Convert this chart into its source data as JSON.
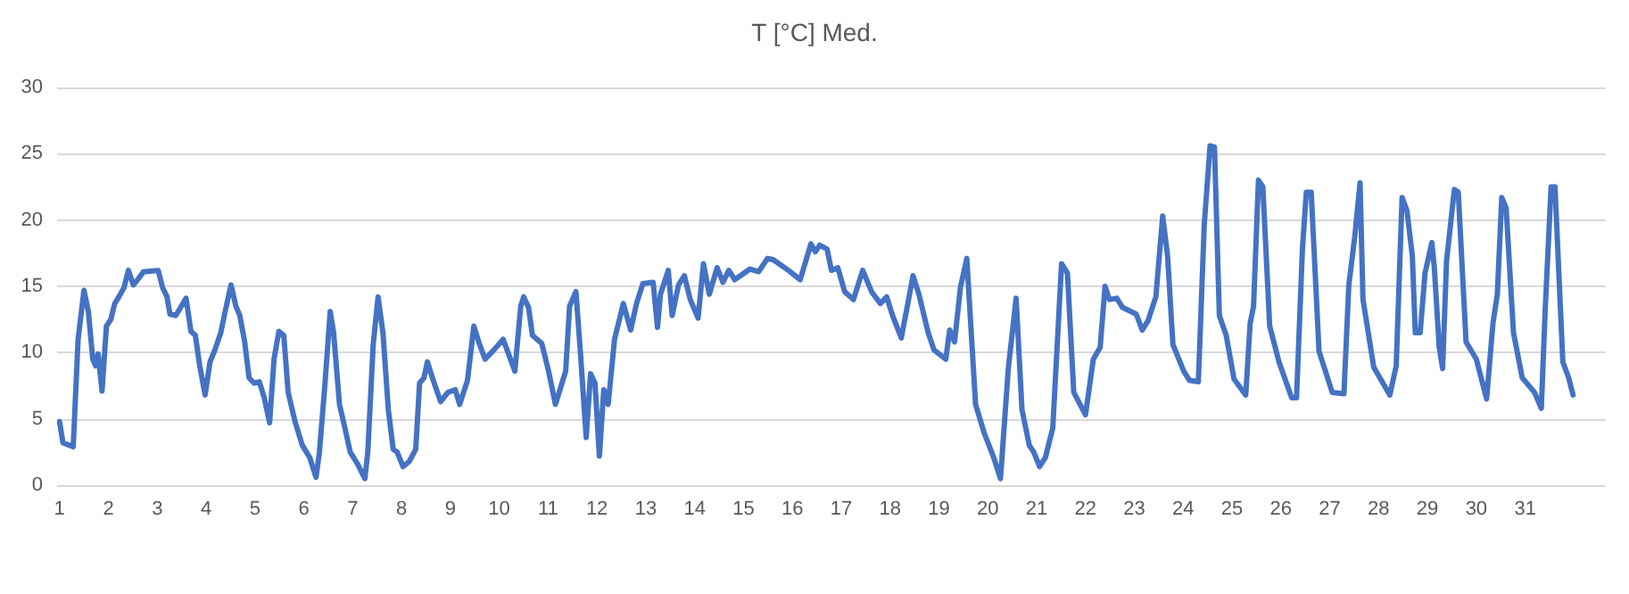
{
  "chart_data": {
    "type": "line",
    "title": "T [°C] Med.",
    "x": [
      1.0,
      1.07,
      1.28,
      1.38,
      1.5,
      1.59,
      1.68,
      1.74,
      1.79,
      1.87,
      1.96,
      2.05,
      2.13,
      2.23,
      2.32,
      2.41,
      2.51,
      2.6,
      2.72,
      3.02,
      3.11,
      3.2,
      3.26,
      3.38,
      3.59,
      3.69,
      3.78,
      3.87,
      3.98,
      4.08,
      4.18,
      4.3,
      4.39,
      4.51,
      4.61,
      4.69,
      4.79,
      4.88,
      4.98,
      5.09,
      5.19,
      5.3,
      5.39,
      5.49,
      5.59,
      5.68,
      5.82,
      5.97,
      6.12,
      6.25,
      6.32,
      6.43,
      6.54,
      6.61,
      6.73,
      6.83,
      6.95,
      7.1,
      7.25,
      7.31,
      7.42,
      7.52,
      7.62,
      7.73,
      7.83,
      7.91,
      8.03,
      8.16,
      8.29,
      8.37,
      8.46,
      8.53,
      8.65,
      8.8,
      8.95,
      9.1,
      9.19,
      9.35,
      9.48,
      9.59,
      9.71,
      9.89,
      10.08,
      10.32,
      10.44,
      10.5,
      10.6,
      10.68,
      10.87,
      11.01,
      11.15,
      11.36,
      11.44,
      11.57,
      11.66,
      11.78,
      11.87,
      11.96,
      12.05,
      12.14,
      12.23,
      12.36,
      12.54,
      12.69,
      12.81,
      12.94,
      13.15,
      13.24,
      13.3,
      13.46,
      13.54,
      13.67,
      13.79,
      13.91,
      14.07,
      14.18,
      14.3,
      14.46,
      14.58,
      14.7,
      14.82,
      15.13,
      15.31,
      15.49,
      15.61,
      15.92,
      16.16,
      16.38,
      16.47,
      16.56,
      16.71,
      16.8,
      16.93,
      17.07,
      17.25,
      17.44,
      17.62,
      17.8,
      17.93,
      18.05,
      18.23,
      18.47,
      18.59,
      18.78,
      18.9,
      19.14,
      19.22,
      19.32,
      19.44,
      19.57,
      19.75,
      19.93,
      20.12,
      20.26,
      20.42,
      20.58,
      20.7,
      20.85,
      20.94,
      21.06,
      21.18,
      21.33,
      21.51,
      21.63,
      21.76,
      22.0,
      22.16,
      22.3,
      22.4,
      22.49,
      22.64,
      22.76,
      23.04,
      23.16,
      23.28,
      23.44,
      23.58,
      23.68,
      23.79,
      24.01,
      24.13,
      24.31,
      24.43,
      24.55,
      24.64,
      24.74,
      24.88,
      25.04,
      25.28,
      25.37,
      25.44,
      25.54,
      25.63,
      25.77,
      25.96,
      26.22,
      26.32,
      26.44,
      26.52,
      26.62,
      26.78,
      27.05,
      27.29,
      27.39,
      27.51,
      27.62,
      27.68,
      27.9,
      28.23,
      28.36,
      28.48,
      28.58,
      28.69,
      28.75,
      28.85,
      28.95,
      29.09,
      29.14,
      29.24,
      29.31,
      29.39,
      29.55,
      29.63,
      29.79,
      30.0,
      30.21,
      30.34,
      30.43,
      30.52,
      30.61,
      30.76,
      30.94,
      31.19,
      31.33,
      31.41,
      31.53,
      31.61,
      31.77,
      31.89,
      31.98
    ],
    "values": [
      4.8,
      3.2,
      2.9,
      11.0,
      14.7,
      13.1,
      9.5,
      9.0,
      9.9,
      7.1,
      12.0,
      12.5,
      13.7,
      14.3,
      14.9,
      16.2,
      15.1,
      15.5,
      16.1,
      16.2,
      14.9,
      14.2,
      12.9,
      12.8,
      14.1,
      11.6,
      11.3,
      9.0,
      6.8,
      9.3,
      10.2,
      11.5,
      13.1,
      15.1,
      13.5,
      12.8,
      10.8,
      8.1,
      7.7,
      7.8,
      6.6,
      4.7,
      9.5,
      11.6,
      11.3,
      7.0,
      4.8,
      3.0,
      2.1,
      0.6,
      2.5,
      7.5,
      13.1,
      11.5,
      6.1,
      4.5,
      2.5,
      1.6,
      0.5,
      2.5,
      10.6,
      14.2,
      11.5,
      5.7,
      2.7,
      2.5,
      1.4,
      1.8,
      2.7,
      7.7,
      8.1,
      9.3,
      7.9,
      6.3,
      7.0,
      7.2,
      6.1,
      7.9,
      12.0,
      10.7,
      9.5,
      10.2,
      11.0,
      8.6,
      13.5,
      14.2,
      13.4,
      11.3,
      10.7,
      8.6,
      6.1,
      8.6,
      13.5,
      14.6,
      10.1,
      3.6,
      8.4,
      7.7,
      2.2,
      7.2,
      6.1,
      11.0,
      13.7,
      11.7,
      13.7,
      15.2,
      15.3,
      11.9,
      14.4,
      16.2,
      12.8,
      15.1,
      15.8,
      14.0,
      12.6,
      16.7,
      14.4,
      16.4,
      15.3,
      16.2,
      15.5,
      16.3,
      16.1,
      17.1,
      17.0,
      16.2,
      15.5,
      18.2,
      17.6,
      18.1,
      17.8,
      16.2,
      16.4,
      14.6,
      14.0,
      16.2,
      14.6,
      13.7,
      14.2,
      12.8,
      11.1,
      15.8,
      14.4,
      11.5,
      10.2,
      9.5,
      11.7,
      10.8,
      14.9,
      17.1,
      6.1,
      3.9,
      2.1,
      0.5,
      8.8,
      14.1,
      5.7,
      3.0,
      2.5,
      1.4,
      2.1,
      4.3,
      16.7,
      16.0,
      7.0,
      5.3,
      9.5,
      10.4,
      15.0,
      14.0,
      14.1,
      13.4,
      12.9,
      11.7,
      12.4,
      14.2,
      20.3,
      17.3,
      10.6,
      8.6,
      7.9,
      7.8,
      19.6,
      25.6,
      25.5,
      12.8,
      11.3,
      8.0,
      6.8,
      12.2,
      13.5,
      23.0,
      22.5,
      12.0,
      9.3,
      6.6,
      6.6,
      17.8,
      22.1,
      22.1,
      10.1,
      7.0,
      6.9,
      15.1,
      18.7,
      22.8,
      14.0,
      8.9,
      6.8,
      9.0,
      21.7,
      20.7,
      17.3,
      11.5,
      11.5,
      16.0,
      18.3,
      16.4,
      10.4,
      8.8,
      16.9,
      22.3,
      22.1,
      10.8,
      9.5,
      6.5,
      12.2,
      14.4,
      21.7,
      20.9,
      11.5,
      8.1,
      7.0,
      5.8,
      13.3,
      22.5,
      22.5,
      9.3,
      8.1,
      6.8
    ],
    "color": "#4472c4",
    "xlim": [
      0.95,
      32.65
    ],
    "xticks": [
      1,
      2,
      3,
      4,
      5,
      6,
      7,
      8,
      9,
      10,
      11,
      12,
      13,
      14,
      15,
      16,
      17,
      18,
      19,
      20,
      21,
      22,
      23,
      24,
      25,
      26,
      27,
      28,
      29,
      30,
      31
    ],
    "ylim": [
      0,
      30
    ],
    "yticks": [
      0,
      5,
      10,
      15,
      20,
      25,
      30
    ],
    "grid": "y",
    "marker": "none",
    "line_style": "solid"
  }
}
